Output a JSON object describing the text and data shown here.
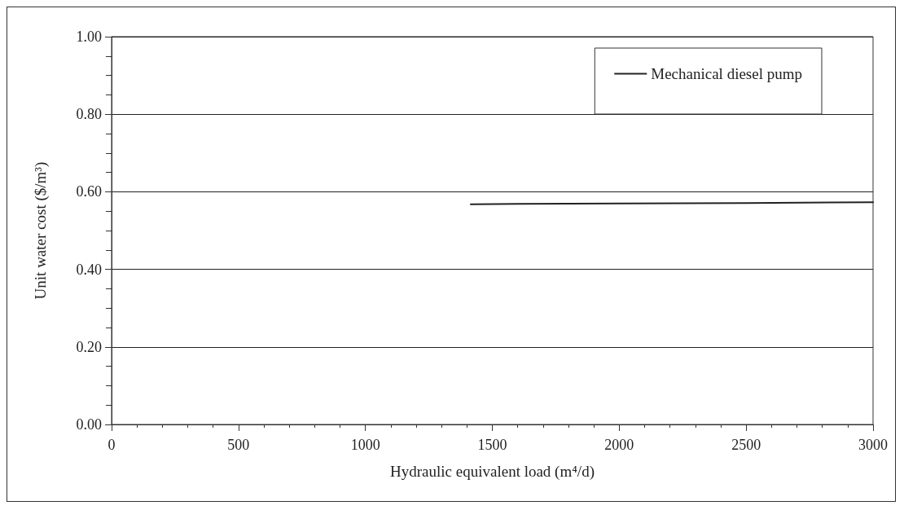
{
  "chart_data": {
    "type": "line",
    "xlabel": "Hydraulic equivalent load (m⁴/d)",
    "ylabel": "Unit water cost ($/m³)",
    "series": [
      {
        "name": "Mechanical diesel pump",
        "color": "#222222",
        "x": [
          1415,
          1600,
          2000,
          2500,
          3000
        ],
        "values": [
          0.568,
          0.569,
          0.57,
          0.571,
          0.573
        ]
      }
    ],
    "xlim": [
      0,
      3000
    ],
    "xticks": [
      0,
      500,
      1000,
      1500,
      2000,
      2500,
      3000
    ],
    "ylim": [
      0,
      1
    ],
    "yticks": [
      {
        "value": 0,
        "label": "0.00"
      },
      {
        "value": 0.2,
        "label": "0.20"
      },
      {
        "value": 0.4,
        "label": "0.40"
      },
      {
        "value": 0.6,
        "label": "0.60"
      },
      {
        "value": 0.8,
        "label": "0.80"
      },
      {
        "value": 1,
        "label": "1.00"
      }
    ],
    "grid": "y",
    "legend": "top right",
    "marker": "none",
    "line_style": "solid"
  }
}
